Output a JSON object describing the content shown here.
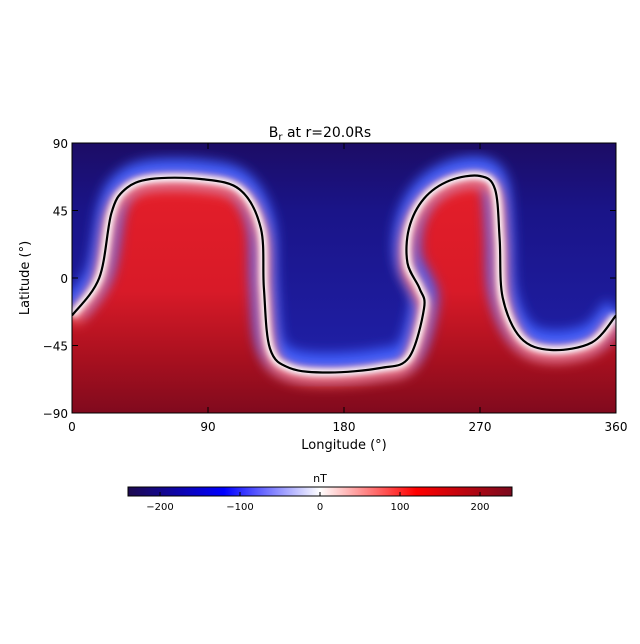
{
  "chart_data": {
    "type": "heatmap",
    "title": {
      "main": "B",
      "subscript": "r",
      "rest": " at r=20.0Rs"
    },
    "xlabel": "Longitude (°)",
    "ylabel": "Latitude (°)",
    "xlim": [
      0,
      360
    ],
    "ylim": [
      -90,
      90
    ],
    "xticks": [
      "0",
      "90",
      "180",
      "270",
      "360"
    ],
    "xtick_values": [
      0,
      90,
      180,
      270,
      360
    ],
    "yticks": [
      "90",
      "45",
      "0",
      "−45",
      "−90"
    ],
    "ytick_values": [
      90,
      45,
      0,
      -45,
      -90
    ],
    "contour_level": 0,
    "contour_lonlat": [
      [
        0,
        -25
      ],
      [
        18,
        0
      ],
      [
        26,
        43
      ],
      [
        35,
        59
      ],
      [
        52,
        66
      ],
      [
        85,
        66
      ],
      [
        111,
        59
      ],
      [
        125,
        33
      ],
      [
        127,
        -7
      ],
      [
        131,
        -47
      ],
      [
        144,
        -60
      ],
      [
        170,
        -63
      ],
      [
        204,
        -60
      ],
      [
        223,
        -53
      ],
      [
        233,
        -20
      ],
      [
        230,
        -7
      ],
      [
        222,
        10
      ],
      [
        223,
        33
      ],
      [
        233,
        53
      ],
      [
        250,
        65
      ],
      [
        270,
        68
      ],
      [
        280,
        59
      ],
      [
        283,
        26
      ],
      [
        285,
        -13
      ],
      [
        297,
        -40
      ],
      [
        317,
        -48
      ],
      [
        344,
        -43
      ],
      [
        360,
        -25
      ]
    ],
    "colorbar": {
      "label": "nT",
      "range": [
        -240,
        240
      ],
      "ticks": [
        "−200",
        "−100",
        "0",
        "100",
        "200"
      ],
      "tick_values": [
        -200,
        -100,
        0,
        100,
        200
      ],
      "colors": [
        "#1d0a4e",
        "#0000ff",
        "#ffffff",
        "#ff0000",
        "#7a0a1e"
      ]
    }
  }
}
